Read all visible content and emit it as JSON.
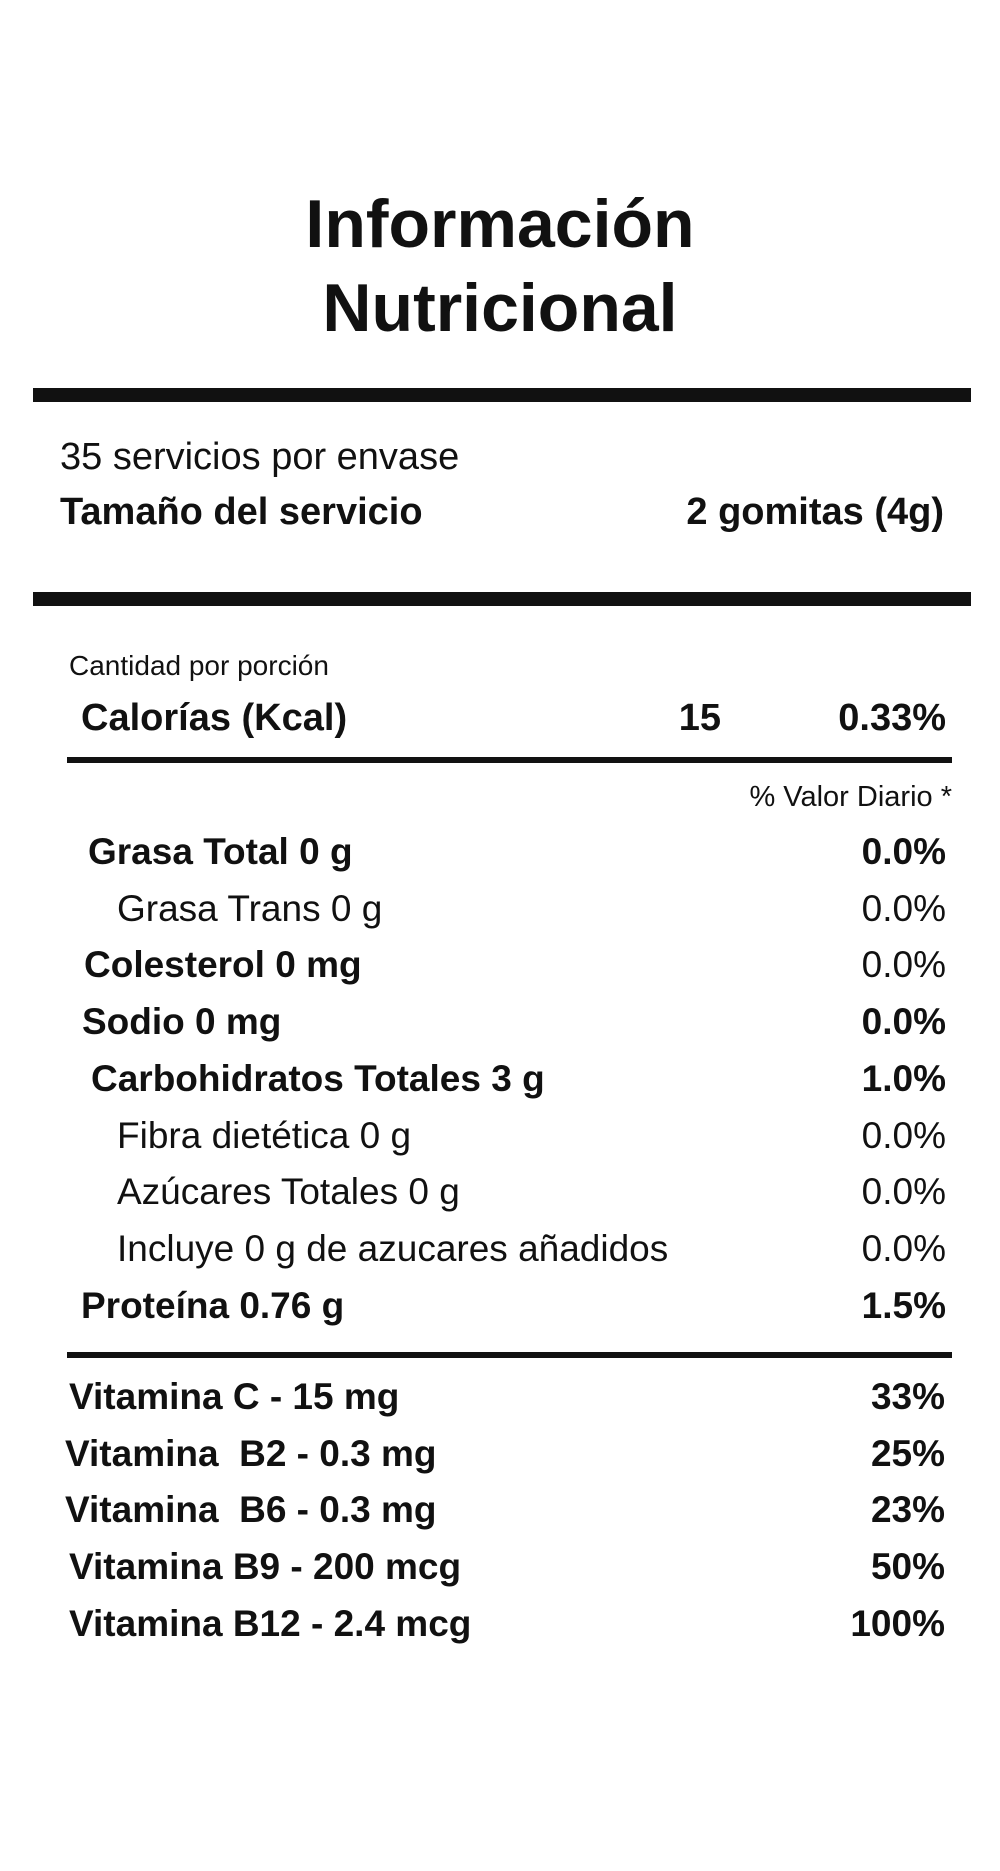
{
  "header": {
    "title_line1": "Información",
    "title_line2": "Nutricional"
  },
  "serving": {
    "servings_per_container": "35 servicios por envase",
    "size_label": "Tamaño del servicio",
    "size_value": "2 gomitas (4g)"
  },
  "calories": {
    "caption": "Cantidad por porción",
    "label": "Calorías (Kcal)",
    "amount": "15",
    "percent": "0.33%"
  },
  "daily_value_header": "% Valor Diario *",
  "nutrients": [
    [
      "Grasa Total 0 g",
      "0.0%"
    ],
    [
      "Grasa Trans 0 g",
      "0.0%"
    ],
    [
      "Colesterol 0 mg",
      "0.0%"
    ],
    [
      "Sodio 0 mg",
      "0.0%"
    ],
    [
      "Carbohidratos Totales 3 g",
      "1.0%"
    ],
    [
      "Fibra dietética 0 g",
      "0.0%"
    ],
    [
      "Azúcares Totales 0 g",
      "0.0%"
    ],
    [
      "Incluye 0 g de azucares añadidos",
      "0.0%"
    ],
    [
      "Proteína 0.76 g",
      "1.5%"
    ]
  ],
  "vitamins": [
    [
      "Vitamina C - 15 mg",
      "33%"
    ],
    [
      "Vitamina  B2 - 0.3 mg",
      "25%"
    ],
    [
      "Vitamina  B6 - 0.3 mg",
      "23%"
    ],
    [
      "Vitamina B9 - 200 mcg",
      "50%"
    ],
    [
      "Vitamina B12 - 2.4 mcg",
      "100%"
    ]
  ]
}
